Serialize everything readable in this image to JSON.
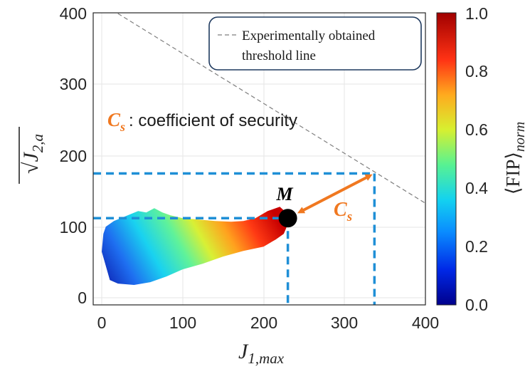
{
  "chart_data": {
    "type": "scatter",
    "x_ticks": [
      "0",
      "100",
      "200",
      "300",
      "400"
    ],
    "y_ticks": [
      "0",
      "100",
      "200",
      "300",
      "400"
    ],
    "xlim": [
      -10,
      400
    ],
    "ylim": [
      -10,
      400
    ],
    "xlabel": {
      "base": "J",
      "sub": "1,max"
    },
    "ylabel": {
      "root": "√",
      "base": "J",
      "sub": "2,a"
    },
    "grid": true,
    "threshold_line": {
      "x": [
        20,
        400
      ],
      "y": [
        400,
        133
      ]
    },
    "region_outline": [
      [
        2,
        90
      ],
      [
        0,
        65
      ],
      [
        5,
        45
      ],
      [
        10,
        25
      ],
      [
        20,
        20
      ],
      [
        40,
        18
      ],
      [
        60,
        22
      ],
      [
        80,
        30
      ],
      [
        100,
        40
      ],
      [
        125,
        48
      ],
      [
        150,
        58
      ],
      [
        175,
        66
      ],
      [
        200,
        72
      ],
      [
        215,
        82
      ],
      [
        225,
        90
      ],
      [
        229,
        101
      ],
      [
        230,
        110
      ],
      [
        228,
        120
      ],
      [
        220,
        128
      ],
      [
        205,
        122
      ],
      [
        190,
        112
      ],
      [
        175,
        108
      ],
      [
        160,
        107
      ],
      [
        140,
        108
      ],
      [
        120,
        110
      ],
      [
        100,
        112
      ],
      [
        85,
        116
      ],
      [
        75,
        120
      ],
      [
        65,
        126
      ],
      [
        55,
        120
      ],
      [
        45,
        122
      ],
      [
        30,
        115
      ],
      [
        15,
        108
      ],
      [
        5,
        100
      ]
    ],
    "colorscale": {
      "label": {
        "open": "⟨FIP⟩",
        "sub": "norm"
      },
      "ticks": [
        "0.0",
        "0.2",
        "0.4",
        "0.6",
        "0.8",
        "1.0"
      ]
    },
    "point_M": {
      "label": "M",
      "x": 230,
      "y": 112
    },
    "projection_point": {
      "x": 337,
      "y": 175
    },
    "dashed_guides": {
      "h1_y": 112,
      "h2_y": 175,
      "v1_x": 230,
      "v2_x": 337
    },
    "legend": {
      "label_line1": "Experimentally obtained",
      "label_line2": "threshold line",
      "position": "top-right"
    },
    "annotation": {
      "symbol": "C",
      "symbol_sub": "s",
      "text": ": coefficient of security"
    },
    "arrow_label": {
      "symbol": "C",
      "symbol_sub": "s"
    }
  },
  "colors": {
    "guide": "#1f8fd6",
    "arrow": "#f07820",
    "point": "#000000",
    "threshold": "#7f7f7f",
    "legend_border": "#1f3a5f"
  }
}
